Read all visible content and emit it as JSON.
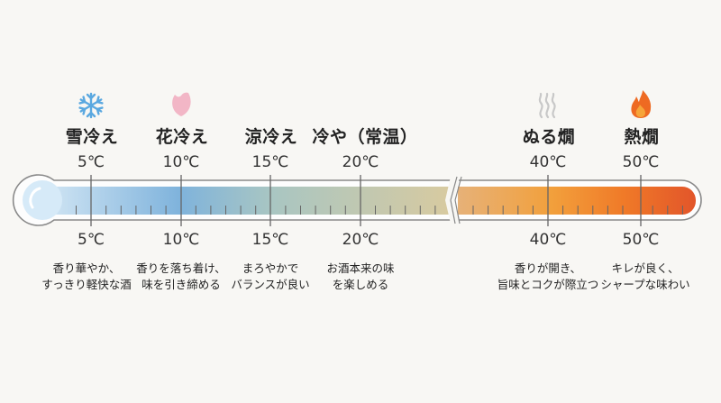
{
  "stages": [
    {
      "name": "雪冷え",
      "temp": "5℃",
      "desc": [
        "香り華やか、",
        "すっきり軽快な酒"
      ],
      "icon": "snowflake-icon"
    },
    {
      "name": "花冷え",
      "temp": "10℃",
      "desc": [
        "香りを落ち着け、",
        "味を引き締める"
      ],
      "icon": "cherry-petal-icon"
    },
    {
      "name": "涼冷え",
      "temp": "15℃",
      "desc": [
        "まろやかで",
        "バランスが良い"
      ],
      "icon": ""
    },
    {
      "name": "冷や（常温）",
      "temp": "20℃",
      "desc": [
        "お酒本来の味",
        "を楽しめる"
      ],
      "icon": ""
    },
    {
      "name": "ぬる燗",
      "temp": "40℃",
      "desc": [
        "香りが開き、",
        "旨味とコクが際立つ"
      ],
      "icon": "steam-icon"
    },
    {
      "name": "熱燗",
      "temp": "50℃",
      "desc": [
        "キレが良く、",
        "シャープな味わい"
      ],
      "icon": "flame-icon"
    }
  ],
  "colors": {
    "cold": "#7fb3dc",
    "neutral": "#d2c9a2",
    "warm": "#f2a03c",
    "hot": "#e55a22",
    "snow": "#5aa8e0",
    "petal": "#f2b6c6"
  }
}
